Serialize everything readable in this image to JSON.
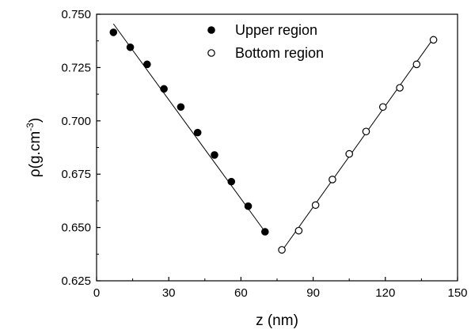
{
  "chart_data": {
    "type": "scatter",
    "title": "",
    "xlabel": "z (nm)",
    "ylabel_base": "ρ(g.cm",
    "ylabel_sup": "-3",
    "ylabel_end": ")",
    "xlim": [
      0,
      150
    ],
    "ylim": [
      0.625,
      0.75
    ],
    "xticks": [
      0,
      30,
      60,
      90,
      120,
      150
    ],
    "xtick_labels": [
      "0",
      "30",
      "60",
      "90",
      "120",
      "150"
    ],
    "yticks": [
      0.625,
      0.65,
      0.675,
      0.7,
      0.725,
      0.75
    ],
    "ytick_labels": [
      "0.625",
      "0.650",
      "0.675",
      "0.700",
      "0.725",
      "0.750"
    ],
    "grid": false,
    "legend_position": "top-center",
    "series": [
      {
        "name": "Upper region",
        "marker": "filled-circle",
        "color": "#000000",
        "x": [
          7,
          14,
          21,
          28,
          35,
          42,
          49,
          56,
          63,
          70
        ],
        "y": [
          0.7415,
          0.7345,
          0.7265,
          0.715,
          0.7065,
          0.6945,
          0.684,
          0.6715,
          0.66,
          0.648
        ],
        "fit": {
          "x": [
            7,
            70
          ],
          "y": [
            0.7455,
            0.648
          ]
        }
      },
      {
        "name": "Bottom region",
        "marker": "open-circle",
        "color": "#000000",
        "x": [
          77,
          84,
          91,
          98,
          105,
          112,
          119,
          126,
          133,
          140
        ],
        "y": [
          0.6395,
          0.6485,
          0.6605,
          0.6725,
          0.6845,
          0.695,
          0.7065,
          0.7155,
          0.7265,
          0.738
        ],
        "fit": {
          "x": [
            77,
            140.5
          ],
          "y": [
            0.639,
            0.7395
          ]
        }
      }
    ]
  }
}
